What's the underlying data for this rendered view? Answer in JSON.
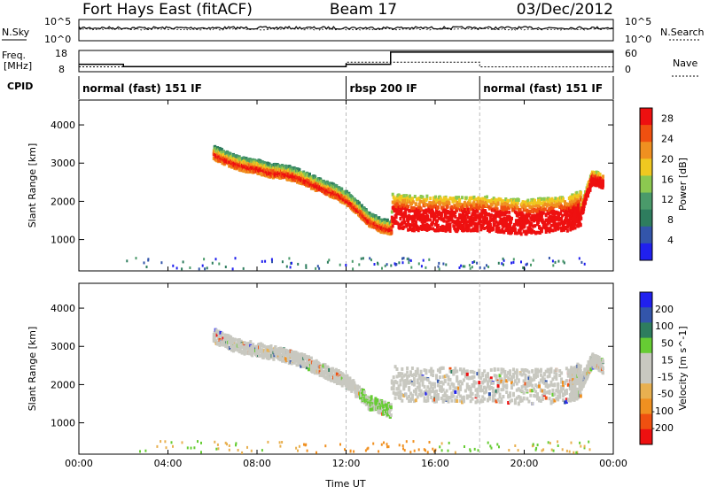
{
  "header": {
    "site": "Fort Hays East (fitACF)",
    "beam": "Beam 17",
    "date": "03/Dec/2012"
  },
  "noise_panel": {
    "left_label": "N.Sky",
    "right_label": "N.Search",
    "left_ticks": [
      "10^5",
      "10^0"
    ],
    "right_ticks": [
      "10^5",
      "10^0"
    ]
  },
  "freq_panel": {
    "left_label_1": "Freq.",
    "left_label_2": "[MHz]",
    "left_ticks": [
      "18",
      "8"
    ],
    "right_ticks": [
      "60",
      "0"
    ],
    "right_label": "Nave"
  },
  "cpid_panel": {
    "label": "CPID",
    "modes": [
      {
        "label": "normal (fast) 151 IF",
        "start_hour": 0
      },
      {
        "label": "rbsp 200 IF",
        "start_hour": 12
      },
      {
        "label": "normal (fast) 151 IF",
        "start_hour": 18
      }
    ]
  },
  "colors": {
    "power_scale": [
      "#2020ee",
      "#3355aa",
      "#2e7d5e",
      "#4a9a6a",
      "#8cc850",
      "#f0c820",
      "#f09020",
      "#f05010",
      "#ee1010"
    ],
    "velocity_scale": [
      "#ee1010",
      "#f05010",
      "#f09020",
      "#e8b050",
      "#c8c8c0",
      "#c8c8c0",
      "#66cc33",
      "#2e7d5e",
      "#3355aa",
      "#2020ee"
    ]
  },
  "chart_data": [
    {
      "type": "line",
      "title": "Power",
      "ylabel": "Slant Range [km]",
      "xlabel": "Time UT",
      "xlim": [
        0,
        24
      ],
      "ylim": [
        180,
        4650
      ],
      "x_ticks": [
        "00:00",
        "04:00",
        "08:00",
        "12:00",
        "16:00",
        "20:00",
        "00:00"
      ],
      "y_ticks": [
        "1000",
        "2000",
        "3000",
        "4000"
      ],
      "colorbar": {
        "label": "Power [dB]",
        "ticks": [
          "4",
          "8",
          "12",
          "16",
          "20",
          "24",
          "28"
        ],
        "range": [
          0,
          30
        ]
      },
      "series": [
        {
          "x": [
            6.0,
            6.5,
            7.0,
            7.5,
            8.0,
            8.5,
            9.0,
            9.5,
            10.0,
            10.5,
            11.0,
            11.5,
            12.0,
            12.5,
            13.0,
            13.5,
            14.0
          ],
          "y": [
            3250,
            3120,
            3000,
            2920,
            2880,
            2780,
            2760,
            2700,
            2600,
            2460,
            2330,
            2220,
            2050,
            1780,
            1500,
            1350,
            1280
          ]
        },
        {
          "x": [
            14.0,
            15.0,
            16.0,
            17.0,
            18.0,
            19.0,
            20.0,
            21.0,
            22.0,
            22.5,
            23.0,
            23.5
          ],
          "y": [
            1600,
            1550,
            1550,
            1520,
            1550,
            1500,
            1450,
            1500,
            1550,
            1700,
            2600,
            2500
          ]
        }
      ]
    },
    {
      "type": "line",
      "title": "Velocity",
      "ylabel": "Slant Range [km]",
      "xlabel": "Time UT",
      "xlim": [
        0,
        24
      ],
      "ylim": [
        180,
        4650
      ],
      "x_ticks": [
        "00:00",
        "04:00",
        "08:00",
        "12:00",
        "16:00",
        "20:00",
        "00:00"
      ],
      "y_ticks": [
        "1000",
        "2000",
        "3000",
        "4000"
      ],
      "colorbar": {
        "label": "Velocity [m s^-1]",
        "ticks": [
          "200",
          "100",
          "50",
          "15",
          "-15",
          "-50",
          "-100",
          "-200"
        ],
        "range": [
          -250,
          250
        ]
      },
      "series": [
        {
          "x": [
            6.0,
            7.0,
            8.0,
            9.0,
            10.0,
            11.0,
            12.0,
            13.0,
            14.0
          ],
          "y": [
            3250,
            3000,
            2880,
            2760,
            2600,
            2330,
            2050,
            1500,
            1280
          ]
        },
        {
          "x": [
            14.0,
            16.0,
            18.0,
            20.0,
            22.0,
            22.5,
            23.0,
            23.5
          ],
          "y": [
            1900,
            1850,
            1850,
            1800,
            1850,
            2000,
            2600,
            2450
          ]
        }
      ]
    }
  ]
}
